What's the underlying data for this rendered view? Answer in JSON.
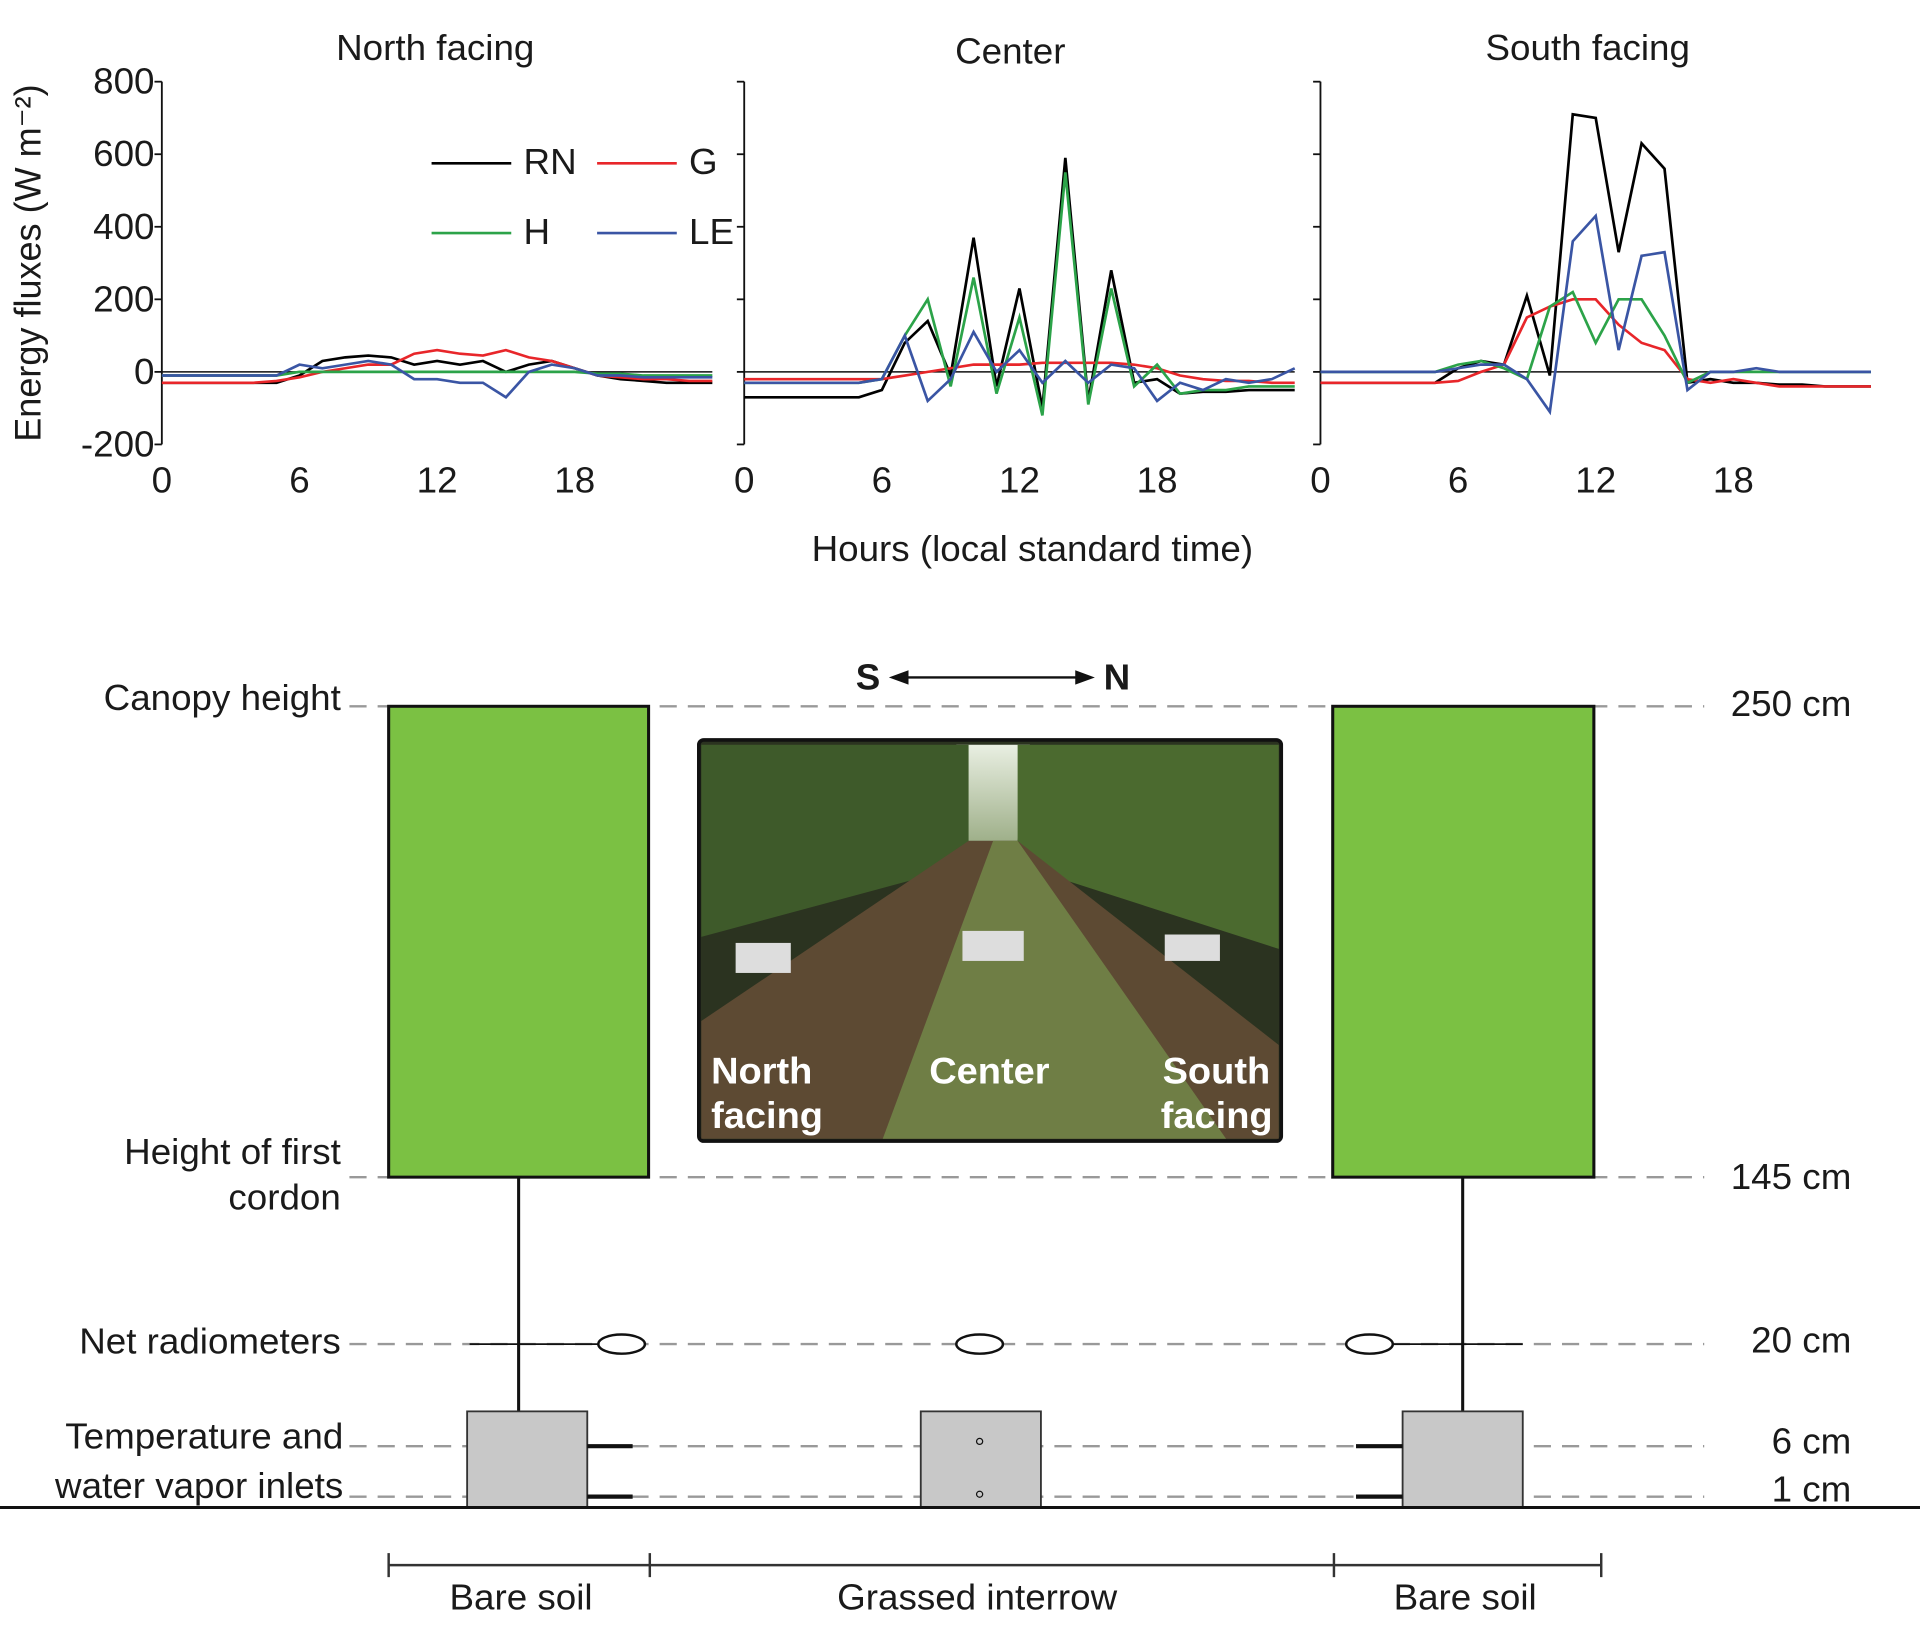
{
  "chart_data": [
    {
      "type": "line",
      "title": "North facing",
      "ylabel": "Energy fluxes (W m⁻²)",
      "xlim": [
        0,
        24
      ],
      "xticks": [
        0,
        6,
        12,
        18
      ],
      "ylim": [
        -200,
        800
      ],
      "yticks": [
        -200,
        0,
        200,
        400,
        600,
        800
      ],
      "x": [
        0,
        1,
        2,
        3,
        4,
        5,
        6,
        7,
        8,
        9,
        10,
        11,
        12,
        13,
        14,
        15,
        16,
        17,
        18,
        19,
        20,
        21,
        22,
        23,
        24
      ],
      "series": [
        {
          "name": "RN",
          "color": "#000000",
          "values": [
            -30,
            -30,
            -30,
            -30,
            -30,
            -30,
            -10,
            30,
            40,
            45,
            40,
            20,
            30,
            20,
            30,
            0,
            20,
            30,
            10,
            -10,
            -20,
            -25,
            -30,
            -30,
            -30
          ]
        },
        {
          "name": "G",
          "color": "#e8262a",
          "values": [
            -30,
            -30,
            -30,
            -30,
            -30,
            -25,
            -15,
            0,
            10,
            20,
            20,
            50,
            60,
            50,
            45,
            60,
            40,
            30,
            10,
            -10,
            -15,
            -20,
            -20,
            -25,
            -25
          ]
        },
        {
          "name": "H",
          "color": "#2ca349",
          "values": [
            -10,
            -10,
            -10,
            -10,
            -10,
            -10,
            0,
            0,
            0,
            0,
            0,
            0,
            0,
            0,
            0,
            0,
            0,
            0,
            0,
            -5,
            -5,
            -10,
            -10,
            -10,
            -10
          ]
        },
        {
          "name": "LE",
          "color": "#3a55a4",
          "values": [
            -10,
            -10,
            -10,
            -10,
            -10,
            -10,
            20,
            10,
            20,
            30,
            20,
            -20,
            -20,
            -30,
            -30,
            -70,
            0,
            20,
            10,
            -10,
            -10,
            -15,
            -15,
            -15,
            -15
          ]
        }
      ]
    },
    {
      "type": "line",
      "title": "Center",
      "xlabel": "Hours (local standard time)",
      "xlim": [
        0,
        24
      ],
      "xticks": [
        0,
        6,
        12,
        18
      ],
      "ylim": [
        -200,
        800
      ],
      "yticks": [
        -200,
        0,
        200,
        400,
        600,
        800
      ],
      "x": [
        0,
        1,
        2,
        3,
        4,
        5,
        6,
        7,
        8,
        9,
        10,
        11,
        12,
        13,
        14,
        15,
        16,
        17,
        18,
        19,
        20,
        21,
        22,
        23,
        24
      ],
      "series": [
        {
          "color": "#000000",
          "values": [
            -70,
            -70,
            -70,
            -70,
            -70,
            -70,
            -50,
            80,
            140,
            -10,
            370,
            -40,
            230,
            -100,
            590,
            -80,
            280,
            -30,
            -20,
            -60,
            -55,
            -55,
            -50,
            -50,
            -50
          ]
        },
        {
          "color": "#e8262a",
          "values": [
            -20,
            -20,
            -20,
            -20,
            -20,
            -20,
            -20,
            -10,
            0,
            10,
            20,
            20,
            20,
            25,
            25,
            25,
            25,
            20,
            10,
            -10,
            -20,
            -25,
            -25,
            -30,
            -30
          ]
        },
        {
          "color": "#2ca349",
          "values": [
            -30,
            -30,
            -30,
            -30,
            -30,
            -30,
            -20,
            100,
            200,
            -40,
            260,
            -60,
            150,
            -120,
            550,
            -90,
            230,
            -40,
            20,
            -60,
            -50,
            -50,
            -40,
            -40,
            -40
          ]
        },
        {
          "color": "#3a55a4",
          "values": [
            -30,
            -30,
            -30,
            -30,
            -30,
            -30,
            -20,
            100,
            -80,
            -20,
            110,
            0,
            60,
            -30,
            30,
            -30,
            20,
            10,
            -80,
            -30,
            -50,
            -20,
            -30,
            -20,
            10
          ]
        }
      ]
    },
    {
      "type": "line",
      "title": "South facing",
      "xlim": [
        0,
        24
      ],
      "xticks": [
        0,
        6,
        12,
        18
      ],
      "ylim": [
        -200,
        800
      ],
      "yticks": [
        -200,
        0,
        200,
        400,
        600,
        800
      ],
      "x": [
        0,
        1,
        2,
        3,
        4,
        5,
        6,
        7,
        8,
        9,
        10,
        11,
        12,
        13,
        14,
        15,
        16,
        17,
        18,
        19,
        20,
        21,
        22,
        23,
        24
      ],
      "series": [
        {
          "color": "#000000",
          "values": [
            -30,
            -30,
            -30,
            -30,
            -30,
            -30,
            10,
            30,
            20,
            210,
            -10,
            710,
            700,
            330,
            630,
            560,
            -30,
            -20,
            -30,
            -30,
            -35,
            -35,
            -40,
            -40,
            -40
          ]
        },
        {
          "color": "#e8262a",
          "values": [
            -30,
            -30,
            -30,
            -30,
            -30,
            -30,
            -25,
            0,
            20,
            150,
            180,
            200,
            200,
            130,
            80,
            60,
            -20,
            -30,
            -20,
            -30,
            -40,
            -40,
            -40,
            -40,
            -40
          ]
        },
        {
          "color": "#2ca349",
          "values": [
            0,
            0,
            0,
            0,
            0,
            0,
            20,
            30,
            10,
            -20,
            180,
            220,
            80,
            200,
            200,
            100,
            -30,
            0,
            0,
            0,
            0,
            0,
            0,
            0,
            0
          ]
        },
        {
          "color": "#3a55a4",
          "values": [
            0,
            0,
            0,
            0,
            0,
            0,
            10,
            20,
            20,
            -20,
            -110,
            360,
            430,
            60,
            320,
            330,
            -50,
            0,
            0,
            10,
            0,
            0,
            0,
            0,
            0
          ]
        }
      ]
    }
  ],
  "diagram": {
    "direction": {
      "left": "S",
      "right": "N"
    },
    "levels": [
      {
        "label": [
          "Canopy height"
        ],
        "height": "250 cm"
      },
      {
        "label": [
          "Height of first",
          "cordon"
        ],
        "height": "145 cm"
      },
      {
        "label": [
          "Net radiometers"
        ],
        "height": "20 cm"
      },
      {
        "label": [
          "Temperature and",
          "water vapor inlets"
        ],
        "height": "6 cm"
      },
      {
        "height": "1 cm"
      }
    ],
    "zones": [
      "Bare soil",
      "Grassed interrow",
      "Bare soil"
    ],
    "photo_labels": [
      [
        "North",
        "facing"
      ],
      [
        "Center"
      ],
      [
        "South",
        "facing"
      ]
    ]
  }
}
